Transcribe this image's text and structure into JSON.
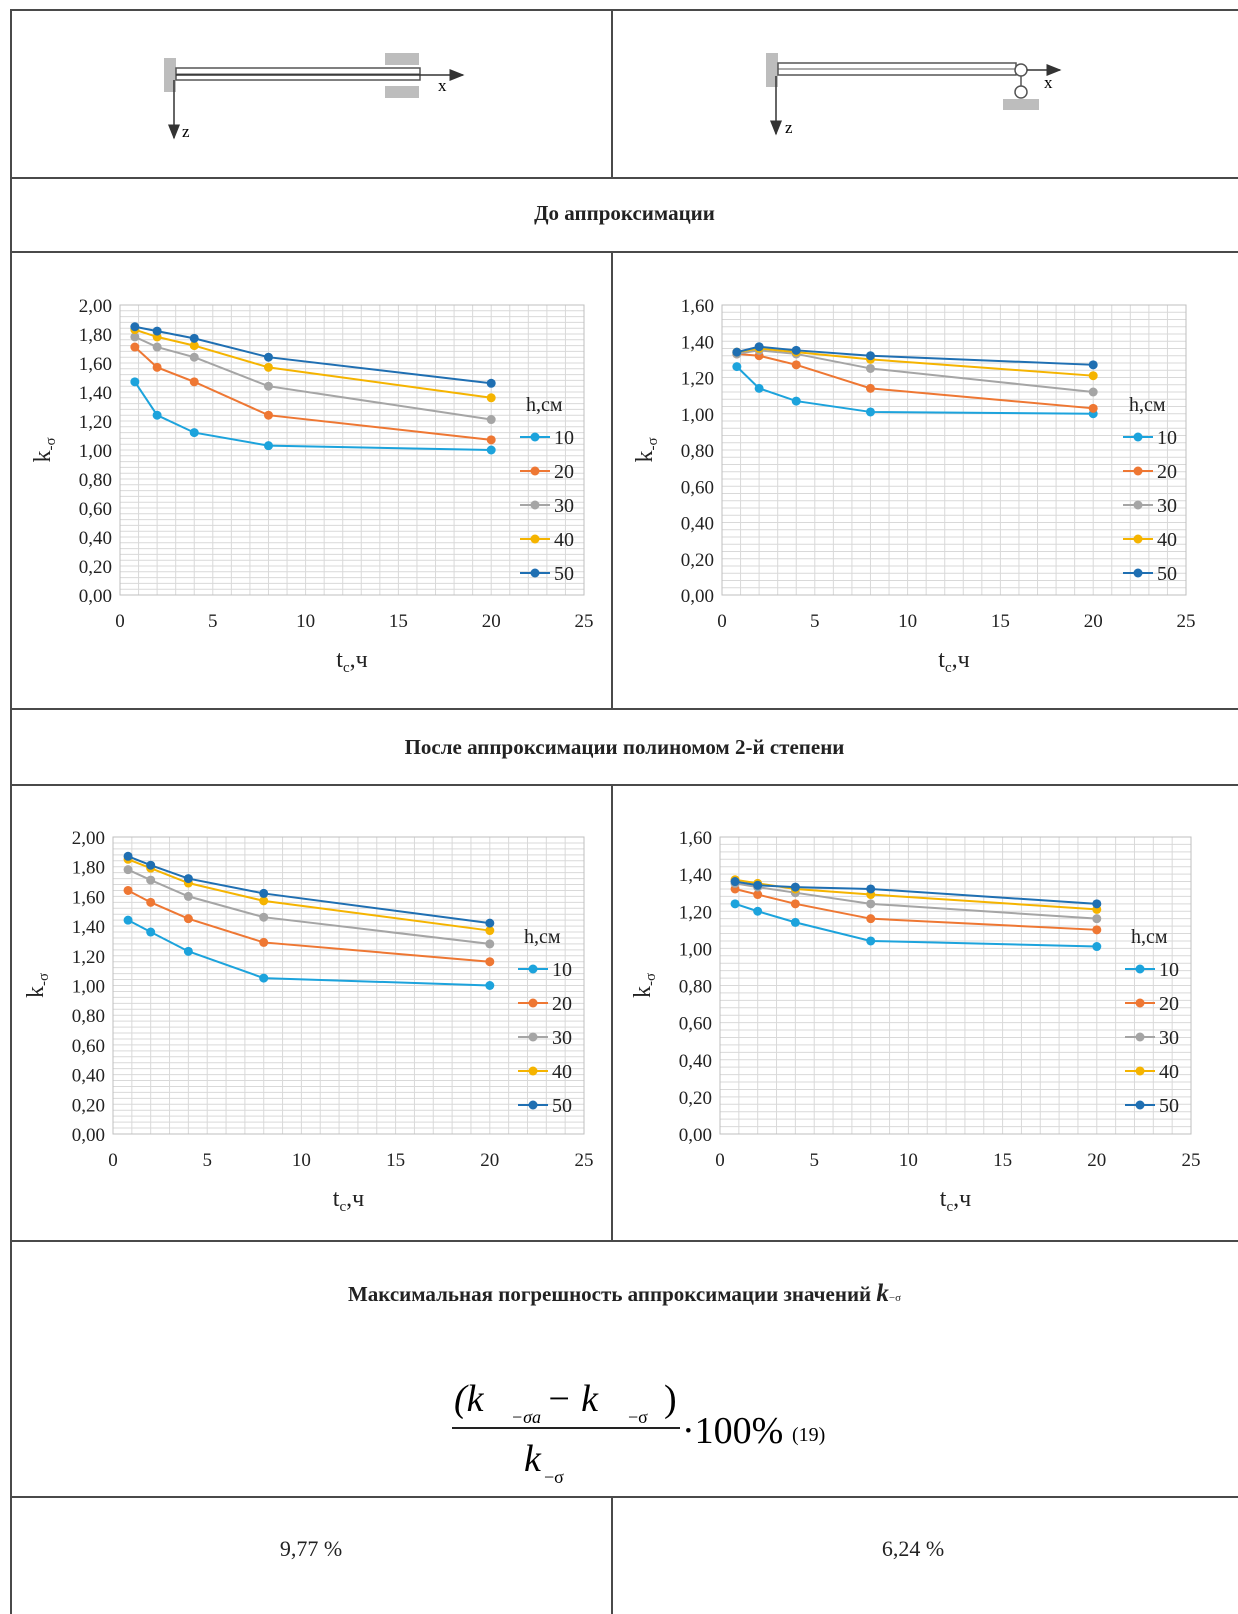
{
  "section_before": "До аппроксимации",
  "section_after": "После аппроксимации полиномом 2-й степени",
  "section_error_prefix": "Максимальная погрешность аппроксимации значений",
  "section_error_symbol": "k",
  "section_error_sub": "−σ",
  "formula": {
    "num_left": "(k",
    "num_left_sub": "−σa",
    "num_minus": " − k",
    "num_right_sub": "−σ",
    "num_close": ")",
    "den": "k",
    "den_sub": "−σ",
    "factor": "·100%",
    "eq_number": "(19)"
  },
  "errors": {
    "left": "9,77 %",
    "right": "6,24 %"
  },
  "diagram_labels": {
    "x": "x",
    "z": "z"
  },
  "colors": {
    "10": "#1ca3dc",
    "20": "#ee7733",
    "30": "#a5a5a5",
    "40": "#f5b400",
    "50": "#1f6fb2",
    "support": "#bdbdbd",
    "grid": "#d9d9d9"
  },
  "chart_data": [
    {
      "type": "line",
      "id": "before-left",
      "xlabel": "t",
      "xlabel_sub": "c",
      "xlabel_unit": ",ч",
      "ylabel": "k",
      "ylabel_sub": "-σ",
      "xlim": [
        0,
        25
      ],
      "ylim": [
        0,
        2
      ],
      "xticks": [
        "0",
        "5",
        "10",
        "15",
        "20",
        "25"
      ],
      "yticks": [
        "0,00",
        "0,20",
        "0,40",
        "0,60",
        "0,80",
        "1,00",
        "1,20",
        "1,40",
        "1,60",
        "1,80",
        "2,00"
      ],
      "legend_title": "h,см",
      "x": [
        0.8,
        2,
        4,
        8,
        20
      ],
      "series": [
        {
          "name": "10",
          "values": [
            1.47,
            1.24,
            1.12,
            1.03,
            1.0
          ]
        },
        {
          "name": "20",
          "values": [
            1.71,
            1.57,
            1.47,
            1.24,
            1.07
          ]
        },
        {
          "name": "30",
          "values": [
            1.78,
            1.71,
            1.64,
            1.44,
            1.21
          ]
        },
        {
          "name": "40",
          "values": [
            1.83,
            1.78,
            1.72,
            1.57,
            1.36
          ]
        },
        {
          "name": "50",
          "values": [
            1.85,
            1.82,
            1.77,
            1.64,
            1.46
          ]
        }
      ]
    },
    {
      "type": "line",
      "id": "before-right",
      "xlabel": "t",
      "xlabel_sub": "c",
      "xlabel_unit": ",ч",
      "ylabel": "k",
      "ylabel_sub": "-σ",
      "xlim": [
        0,
        25
      ],
      "ylim": [
        0,
        1.6
      ],
      "xticks": [
        "0",
        "5",
        "10",
        "15",
        "20",
        "25"
      ],
      "yticks": [
        "0,00",
        "0,20",
        "0,40",
        "0,60",
        "0,80",
        "1,00",
        "1,20",
        "1,40",
        "1,60"
      ],
      "legend_title": "h,см",
      "x": [
        0.8,
        2,
        4,
        8,
        20
      ],
      "series": [
        {
          "name": "10",
          "values": [
            1.26,
            1.14,
            1.07,
            1.01,
            1.0
          ]
        },
        {
          "name": "20",
          "values": [
            1.33,
            1.32,
            1.27,
            1.14,
            1.03
          ]
        },
        {
          "name": "30",
          "values": [
            1.33,
            1.35,
            1.33,
            1.25,
            1.12
          ]
        },
        {
          "name": "40",
          "values": [
            1.34,
            1.36,
            1.34,
            1.3,
            1.21
          ]
        },
        {
          "name": "50",
          "values": [
            1.34,
            1.37,
            1.35,
            1.32,
            1.27
          ]
        }
      ]
    },
    {
      "type": "line",
      "id": "after-left",
      "xlabel": "t",
      "xlabel_sub": "c",
      "xlabel_unit": ",ч",
      "ylabel": "k",
      "ylabel_sub": "-σ",
      "xlim": [
        0,
        25
      ],
      "ylim": [
        0,
        2
      ],
      "xticks": [
        "0",
        "5",
        "10",
        "15",
        "20",
        "25"
      ],
      "yticks": [
        "0,00",
        "0,20",
        "0,40",
        "0,60",
        "0,80",
        "1,00",
        "1,20",
        "1,40",
        "1,60",
        "1,80",
        "2,00"
      ],
      "legend_title": "h,см",
      "x": [
        0.8,
        2,
        4,
        8,
        20
      ],
      "series": [
        {
          "name": "10",
          "values": [
            1.44,
            1.36,
            1.23,
            1.05,
            1.0
          ]
        },
        {
          "name": "20",
          "values": [
            1.64,
            1.56,
            1.45,
            1.29,
            1.16
          ]
        },
        {
          "name": "30",
          "values": [
            1.78,
            1.71,
            1.6,
            1.46,
            1.28
          ]
        },
        {
          "name": "40",
          "values": [
            1.85,
            1.79,
            1.69,
            1.57,
            1.37
          ]
        },
        {
          "name": "50",
          "values": [
            1.87,
            1.81,
            1.72,
            1.62,
            1.42
          ]
        }
      ]
    },
    {
      "type": "line",
      "id": "after-right",
      "xlabel": "t",
      "xlabel_sub": "c",
      "xlabel_unit": ",ч",
      "ylabel": "k",
      "ylabel_sub": "-σ",
      "xlim": [
        0,
        25
      ],
      "ylim": [
        0,
        1.6
      ],
      "xticks": [
        "0",
        "5",
        "10",
        "15",
        "20",
        "25"
      ],
      "yticks": [
        "0,00",
        "0,20",
        "0,40",
        "0,60",
        "0,80",
        "1,00",
        "1,20",
        "1,40",
        "1,60"
      ],
      "legend_title": "h,см",
      "x": [
        0.8,
        2,
        4,
        8,
        20
      ],
      "series": [
        {
          "name": "10",
          "values": [
            1.24,
            1.2,
            1.14,
            1.04,
            1.01
          ]
        },
        {
          "name": "20",
          "values": [
            1.32,
            1.29,
            1.24,
            1.16,
            1.1
          ]
        },
        {
          "name": "30",
          "values": [
            1.35,
            1.33,
            1.3,
            1.24,
            1.16
          ]
        },
        {
          "name": "40",
          "values": [
            1.37,
            1.35,
            1.32,
            1.29,
            1.21
          ]
        },
        {
          "name": "50",
          "values": [
            1.36,
            1.34,
            1.33,
            1.32,
            1.24
          ]
        }
      ]
    }
  ]
}
